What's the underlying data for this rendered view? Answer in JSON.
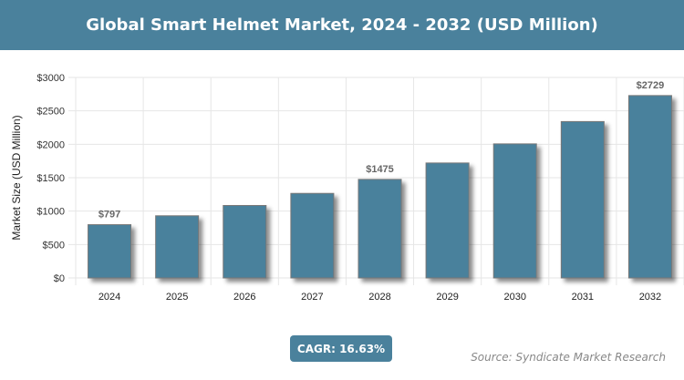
{
  "chart_data": {
    "type": "bar",
    "title": "Global Smart Helmet Market, 2024 - 2032 (USD Million)",
    "ylabel": "Market Size (USD Million)",
    "xlabel": "",
    "categories": [
      "2024",
      "2025",
      "2026",
      "2027",
      "2028",
      "2029",
      "2030",
      "2031",
      "2032"
    ],
    "values": [
      797,
      930,
      1084,
      1265,
      1475,
      1720,
      2006,
      2340,
      2729
    ],
    "data_labels": {
      "2024": "$797",
      "2028": "$1475",
      "2032": "$2729"
    },
    "ylim": [
      0,
      3000
    ],
    "yticks": [
      0,
      500,
      1000,
      1500,
      2000,
      2500,
      3000
    ],
    "ytick_labels": [
      "$0",
      "$500",
      "$1000",
      "$1500",
      "$2000",
      "$2500",
      "$3000"
    ],
    "grid": true,
    "legend": "none",
    "bar_color": "#4a819c"
  },
  "badge": {
    "cagr": "CAGR: 16.63%"
  },
  "source": "Source: Syndicate Market Research",
  "colors": {
    "header": "#4a819c"
  }
}
